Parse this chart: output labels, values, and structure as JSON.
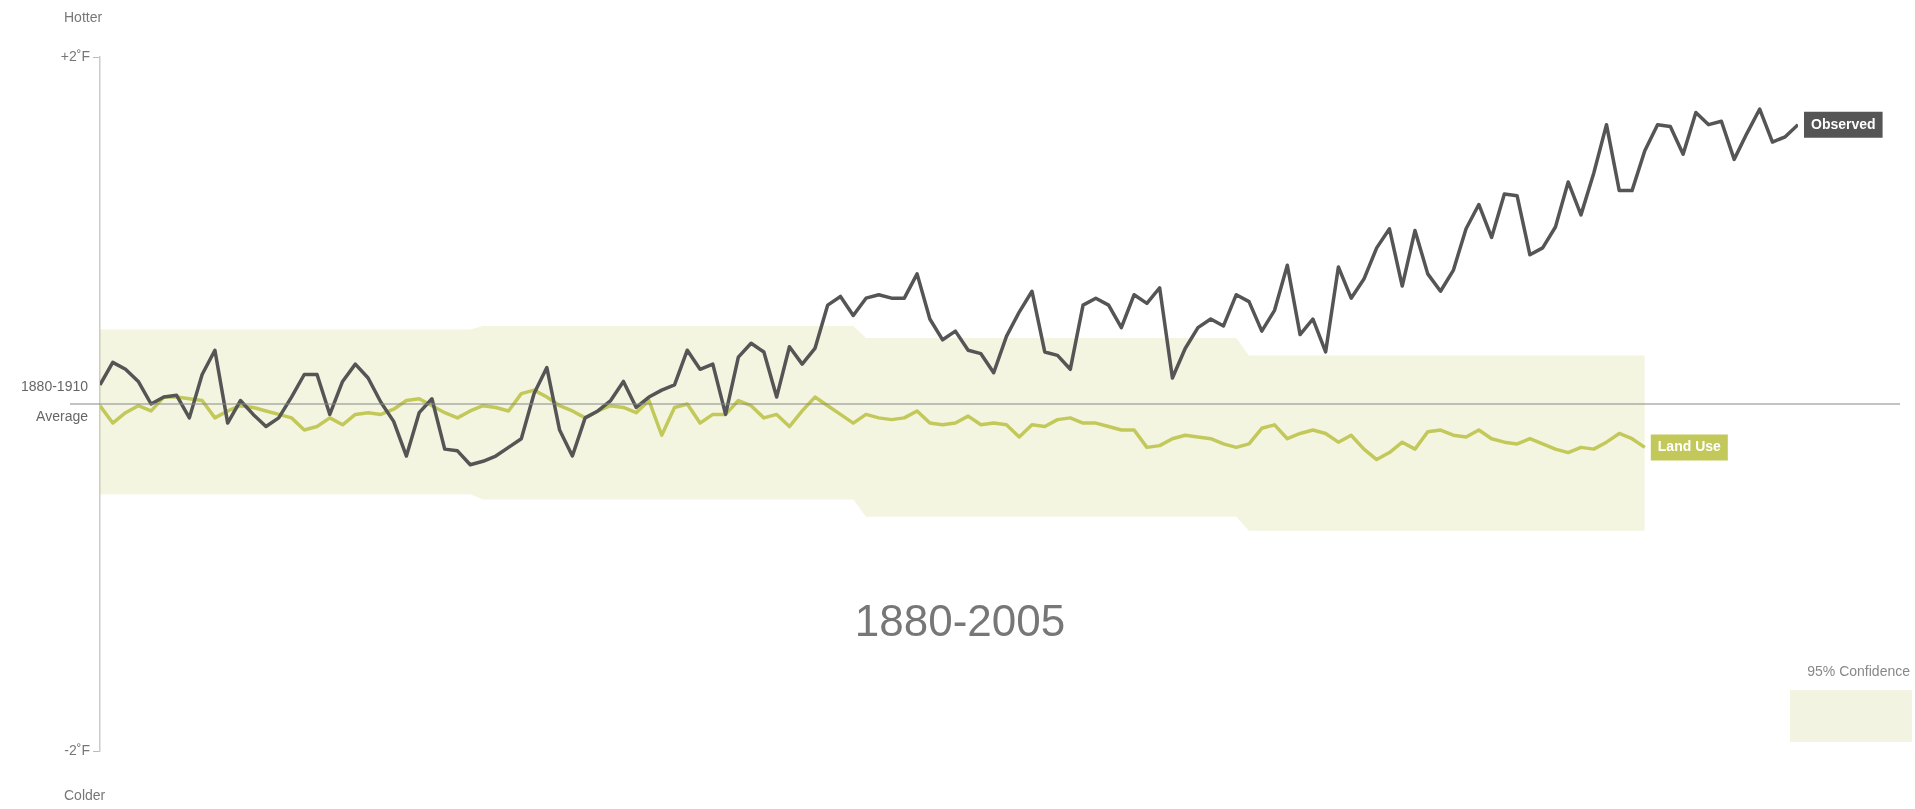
{
  "chart_data": {
    "type": "line",
    "categories": [
      null,
      null,
      null,
      null,
      null,
      null,
      null,
      null,
      null,
      null,
      null,
      null,
      null,
      null,
      null,
      null,
      null,
      null,
      null,
      null,
      null,
      null,
      null,
      null,
      null,
      null,
      null,
      null,
      null,
      null,
      null,
      null,
      null,
      null,
      null,
      null,
      null,
      null,
      null,
      null,
      null,
      null,
      null,
      null,
      null,
      null,
      null,
      null,
      null,
      null,
      null,
      null,
      null,
      null,
      null,
      null,
      null,
      null,
      null,
      null,
      null,
      null,
      null,
      null,
      null,
      null,
      null,
      null,
      null,
      null,
      null,
      null,
      null,
      null,
      null,
      null,
      null,
      null,
      null,
      null,
      null,
      null,
      null,
      null,
      null,
      null,
      null,
      null,
      null,
      null,
      null,
      null,
      null,
      null,
      null,
      null,
      null,
      null,
      null,
      null,
      null,
      null,
      null,
      null,
      null,
      null,
      null,
      null,
      null,
      null,
      null,
      null,
      null,
      null,
      null,
      null,
      null,
      null,
      null,
      null,
      null,
      null,
      null,
      null,
      null,
      null,
      null,
      null,
      null,
      null,
      null,
      null,
      null,
      null
    ],
    "series": [
      {
        "name": "Land Use",
        "color": "#c2c95a",
        "values": [
          -0.01,
          -0.11,
          -0.05,
          -0.01,
          -0.04,
          0.04,
          0.04,
          0.03,
          0.02,
          -0.08,
          -0.04,
          -0.01,
          -0.02,
          -0.04,
          -0.06,
          -0.08,
          -0.15,
          -0.13,
          -0.08,
          -0.12,
          -0.06,
          -0.05,
          -0.06,
          -0.03,
          0.02,
          0.03,
          -0.01,
          -0.05,
          -0.08,
          -0.04,
          -0.01,
          -0.02,
          -0.04,
          0.06,
          0.08,
          0.04,
          -0.01,
          -0.04,
          -0.08,
          -0.04,
          -0.01,
          -0.02,
          -0.05,
          0.02,
          -0.18,
          -0.02,
          0.0,
          -0.11,
          -0.06,
          -0.06,
          0.02,
          -0.01,
          -0.08,
          -0.06,
          -0.13,
          -0.04,
          0.04,
          -0.01,
          -0.06,
          -0.11,
          -0.06,
          -0.08,
          -0.09,
          -0.08,
          -0.04,
          -0.11,
          -0.12,
          -0.11,
          -0.07,
          -0.12,
          -0.11,
          -0.12,
          -0.19,
          -0.12,
          -0.13,
          -0.09,
          -0.08,
          -0.11,
          -0.11,
          -0.13,
          -0.15,
          -0.15,
          -0.25,
          -0.24,
          -0.2,
          -0.18,
          -0.19,
          -0.2,
          -0.23,
          -0.25,
          -0.23,
          -0.14,
          -0.12,
          -0.2,
          -0.17,
          -0.15,
          -0.17,
          -0.22,
          -0.18,
          -0.26,
          -0.32,
          -0.28,
          -0.22,
          -0.26,
          -0.16,
          -0.15,
          -0.18,
          -0.19,
          -0.15,
          -0.2,
          -0.22,
          -0.23,
          -0.2,
          -0.23,
          -0.26,
          -0.28,
          -0.25,
          -0.26,
          -0.22,
          -0.17,
          -0.2,
          -0.25,
          null,
          null,
          null,
          null,
          null,
          null,
          null,
          null,
          null,
          null,
          null,
          null
        ],
        "upper": [
          0.43,
          0.43,
          0.43,
          0.43,
          0.43,
          0.43,
          0.43,
          0.43,
          0.43,
          0.43,
          0.43,
          0.43,
          0.43,
          0.43,
          0.43,
          0.43,
          0.43,
          0.43,
          0.43,
          0.43,
          0.43,
          0.43,
          0.43,
          0.43,
          0.43,
          0.43,
          0.43,
          0.43,
          0.43,
          0.43,
          0.45,
          0.45,
          0.45,
          0.45,
          0.45,
          0.45,
          0.45,
          0.45,
          0.45,
          0.45,
          0.45,
          0.45,
          0.45,
          0.45,
          0.45,
          0.45,
          0.45,
          0.45,
          0.45,
          0.45,
          0.45,
          0.45,
          0.45,
          0.45,
          0.45,
          0.45,
          0.45,
          0.45,
          0.45,
          0.45,
          0.38,
          0.38,
          0.38,
          0.38,
          0.38,
          0.38,
          0.38,
          0.38,
          0.38,
          0.38,
          0.38,
          0.38,
          0.38,
          0.38,
          0.38,
          0.38,
          0.38,
          0.38,
          0.38,
          0.38,
          0.38,
          0.38,
          0.38,
          0.38,
          0.38,
          0.38,
          0.38,
          0.38,
          0.38,
          0.38,
          0.28,
          0.28,
          0.28,
          0.28,
          0.28,
          0.28,
          0.28,
          0.28,
          0.28,
          0.28,
          0.28,
          0.28,
          0.28,
          0.28,
          0.28,
          0.28,
          0.28,
          0.28,
          0.28,
          0.28,
          0.28,
          0.28,
          0.28,
          0.28,
          0.28,
          0.28,
          0.28,
          0.28,
          0.28,
          0.28,
          0.28,
          0.28,
          null,
          null,
          null,
          null,
          null,
          null,
          null,
          null,
          null,
          null,
          null,
          null
        ],
        "lower": [
          -0.52,
          -0.52,
          -0.52,
          -0.52,
          -0.52,
          -0.52,
          -0.52,
          -0.52,
          -0.52,
          -0.52,
          -0.52,
          -0.52,
          -0.52,
          -0.52,
          -0.52,
          -0.52,
          -0.52,
          -0.52,
          -0.52,
          -0.52,
          -0.52,
          -0.52,
          -0.52,
          -0.52,
          -0.52,
          -0.52,
          -0.52,
          -0.52,
          -0.52,
          -0.52,
          -0.55,
          -0.55,
          -0.55,
          -0.55,
          -0.55,
          -0.55,
          -0.55,
          -0.55,
          -0.55,
          -0.55,
          -0.55,
          -0.55,
          -0.55,
          -0.55,
          -0.55,
          -0.55,
          -0.55,
          -0.55,
          -0.55,
          -0.55,
          -0.55,
          -0.55,
          -0.55,
          -0.55,
          -0.55,
          -0.55,
          -0.55,
          -0.55,
          -0.55,
          -0.55,
          -0.65,
          -0.65,
          -0.65,
          -0.65,
          -0.65,
          -0.65,
          -0.65,
          -0.65,
          -0.65,
          -0.65,
          -0.65,
          -0.65,
          -0.65,
          -0.65,
          -0.65,
          -0.65,
          -0.65,
          -0.65,
          -0.65,
          -0.65,
          -0.65,
          -0.65,
          -0.65,
          -0.65,
          -0.65,
          -0.65,
          -0.65,
          -0.65,
          -0.65,
          -0.65,
          -0.73,
          -0.73,
          -0.73,
          -0.73,
          -0.73,
          -0.73,
          -0.73,
          -0.73,
          -0.73,
          -0.73,
          -0.73,
          -0.73,
          -0.73,
          -0.73,
          -0.73,
          -0.73,
          -0.73,
          -0.73,
          -0.73,
          -0.73,
          -0.73,
          -0.73,
          -0.73,
          -0.73,
          -0.73,
          -0.73,
          -0.73,
          -0.73,
          -0.73,
          -0.73,
          -0.73,
          -0.73,
          null,
          null,
          null,
          null,
          null,
          null,
          null,
          null,
          null,
          null,
          null,
          null
        ]
      },
      {
        "name": "Observed",
        "color": "#555555",
        "values": [
          0.11,
          0.24,
          0.2,
          0.13,
          0.0,
          0.04,
          0.05,
          -0.08,
          0.17,
          0.31,
          -0.11,
          0.02,
          -0.06,
          -0.13,
          -0.08,
          0.04,
          0.17,
          0.17,
          -0.06,
          0.13,
          0.23,
          0.15,
          0.01,
          -0.1,
          -0.3,
          -0.05,
          0.03,
          -0.26,
          -0.27,
          -0.35,
          -0.33,
          -0.3,
          -0.25,
          -0.2,
          0.06,
          0.21,
          -0.15,
          -0.3,
          -0.08,
          -0.04,
          0.02,
          0.13,
          -0.02,
          0.04,
          0.08,
          0.11,
          0.31,
          0.2,
          0.23,
          -0.06,
          0.27,
          0.35,
          0.3,
          0.04,
          0.33,
          0.23,
          0.32,
          0.57,
          0.62,
          0.51,
          0.61,
          0.63,
          0.61,
          0.61,
          0.75,
          0.49,
          0.37,
          0.42,
          0.31,
          0.29,
          0.18,
          0.39,
          0.53,
          0.65,
          0.3,
          0.28,
          0.2,
          0.57,
          0.61,
          0.57,
          0.44,
          0.63,
          0.58,
          0.67,
          0.15,
          0.32,
          0.44,
          0.49,
          0.45,
          0.63,
          0.59,
          0.42,
          0.54,
          0.8,
          0.4,
          0.49,
          0.3,
          0.79,
          0.61,
          0.72,
          0.9,
          1.01,
          0.68,
          1.0,
          0.75,
          0.65,
          0.77,
          1.01,
          1.15,
          0.96,
          1.21,
          1.2,
          0.86,
          0.9,
          1.02,
          1.28,
          1.09,
          1.33,
          1.61,
          1.23,
          1.23,
          1.46,
          1.61,
          1.6,
          1.44,
          1.68,
          1.61,
          1.63,
          1.41,
          1.56,
          1.7,
          1.51,
          1.54,
          1.61
        ]
      }
    ],
    "ylim": [
      -2,
      2
    ],
    "yticks": [
      {
        "value": 2,
        "label": "+2˚F"
      },
      {
        "value": -2,
        "label": "-2˚F"
      }
    ],
    "tick_labels": "y",
    "ref_lines": [
      {
        "axis": "y",
        "value": 0,
        "label": "1880-1910 Average",
        "color": "#888888"
      }
    ],
    "annotations": [
      "Hotter",
      "Colder",
      "1880-2005",
      "95% Confidence"
    ],
    "grid": false,
    "legend": false,
    "marker": "none",
    "line_style": "solid"
  }
}
